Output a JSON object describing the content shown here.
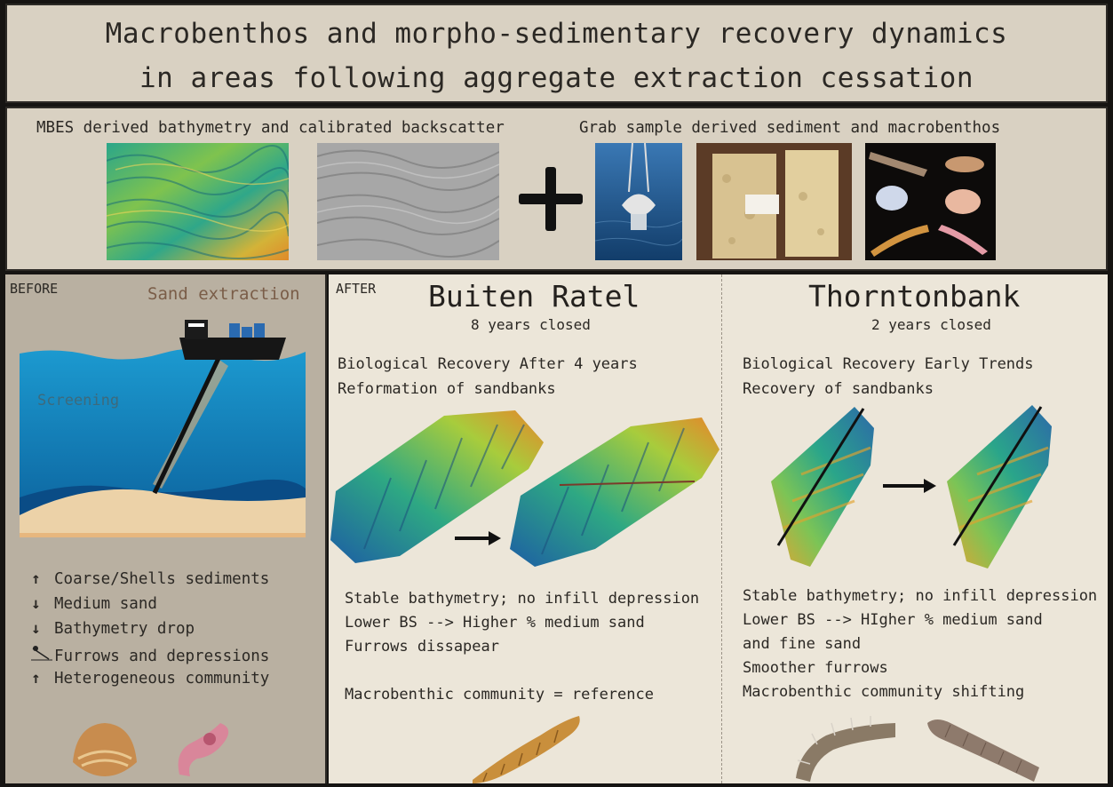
{
  "title": {
    "line1": "Macrobenthos and morpho-sedimentary recovery dynamics",
    "line2": "in areas following aggregate extraction cessation"
  },
  "data_band": {
    "left_label": "MBES derived bathymetry and calibrated backscatter",
    "right_label": "Grab sample derived sediment and macrobenthos"
  },
  "before": {
    "heading": "BEFORE",
    "sand_extraction": "Sand extraction",
    "screening": "Screening",
    "effects": [
      {
        "arrow": "↑",
        "text": "Coarse/Shells sediments"
      },
      {
        "arrow": "↓",
        "text": "Medium sand"
      },
      {
        "arrow": "↓",
        "text": "Bathymetry drop"
      },
      {
        "arrow": "",
        "text": "Furrows and depressions"
      },
      {
        "arrow": "↑",
        "text": "Heterogeneous community"
      }
    ]
  },
  "after": {
    "heading": "AFTER",
    "buiten_ratel": {
      "name": "Buiten Ratel",
      "closed": "8 years closed",
      "lines": [
        "Biological Recovery After 4 years",
        "Reformation of sandbanks"
      ],
      "findings": [
        "Stable bathymetry; no infill depression",
        "Lower BS --> Higher % medium sand",
        "Furrows dissapear"
      ],
      "community": "Macrobenthic community = reference"
    },
    "thorntonbank": {
      "name": "Thorntonbank",
      "closed": "2 years closed",
      "lines": [
        "Biological Recovery Early Trends",
        "Recovery of sandbanks"
      ],
      "findings": [
        "Stable bathymetry; no infill depression",
        "Lower BS --> HIgher % medium sand",
        "and fine sand",
        "Smoother furrows",
        "Macrobenthic community shifting"
      ]
    }
  },
  "colors": {
    "background": "#161412",
    "panel": "#d9d1c2",
    "before_panel": "#b9b0a1",
    "after_panel": "#ece6d9",
    "sea": "#1c8fc4",
    "sand": "#e6c79a"
  }
}
